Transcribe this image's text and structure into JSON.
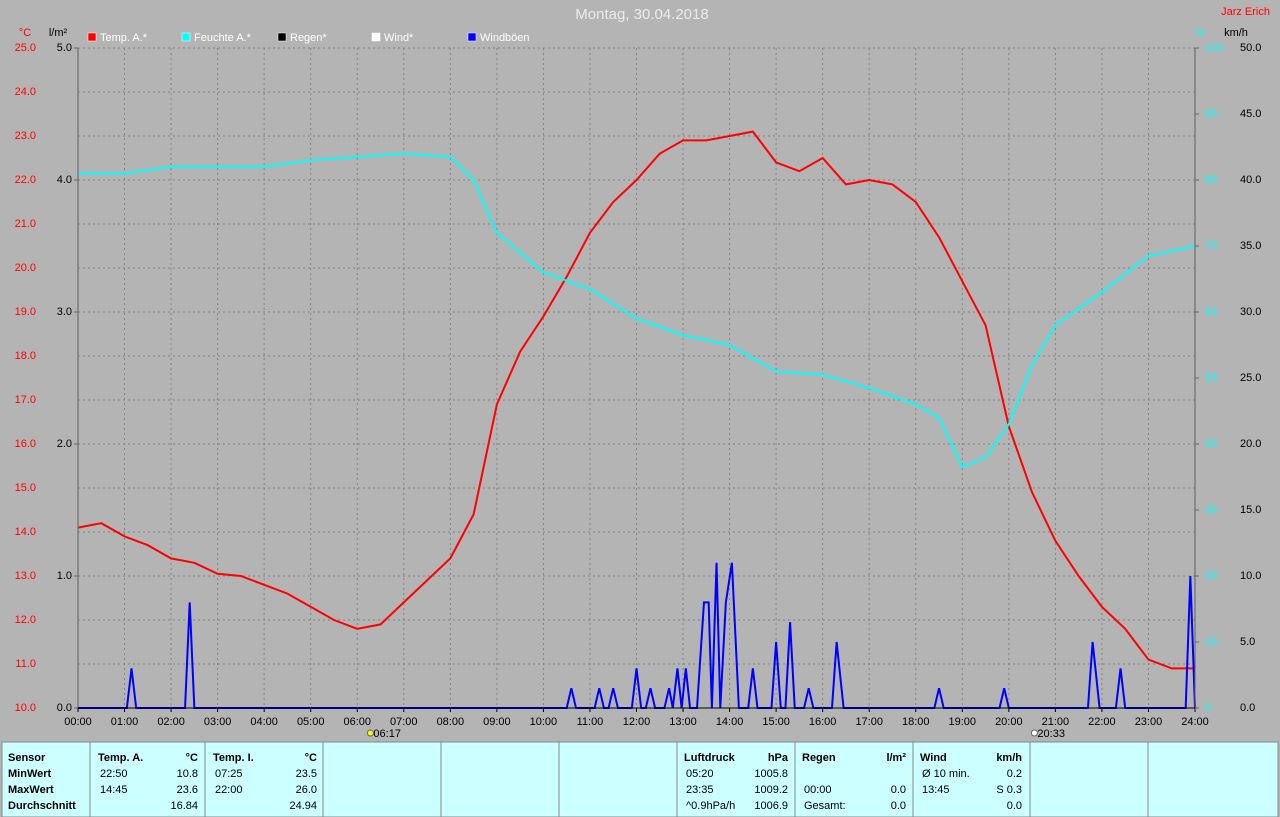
{
  "chart_data": {
    "type": "line",
    "title": "Montag, 30.04.2018",
    "author": "Jarz Erich",
    "xlim": [
      0,
      24
    ],
    "xticks": [
      {
        "value": 0,
        "label": "00:00"
      },
      {
        "value": 1,
        "label": "01:00"
      },
      {
        "value": 2,
        "label": "02:00"
      },
      {
        "value": 3,
        "label": "03:00"
      },
      {
        "value": 4,
        "label": "04:00"
      },
      {
        "value": 5,
        "label": "05:00"
      },
      {
        "value": 6,
        "label": "06:00"
      },
      {
        "value": 7,
        "label": "07:00"
      },
      {
        "value": 8,
        "label": "08:00"
      },
      {
        "value": 9,
        "label": "09:00"
      },
      {
        "value": 10,
        "label": "10:00"
      },
      {
        "value": 11,
        "label": "11:00"
      },
      {
        "value": 12,
        "label": "12:00"
      },
      {
        "value": 13,
        "label": "13:00"
      },
      {
        "value": 14,
        "label": "14:00"
      },
      {
        "value": 15,
        "label": "15:00"
      },
      {
        "value": 16,
        "label": "16:00"
      },
      {
        "value": 17,
        "label": "17:00"
      },
      {
        "value": 18,
        "label": "18:00"
      },
      {
        "value": 19,
        "label": "19:00"
      },
      {
        "value": 20,
        "label": "20:00"
      },
      {
        "value": 21,
        "label": "21:00"
      },
      {
        "value": 22,
        "label": "22:00"
      },
      {
        "value": 23,
        "label": "23:00"
      },
      {
        "value": 24,
        "label": "24:00"
      }
    ],
    "grid": true,
    "axes": {
      "temp": {
        "label": "°C",
        "color": "#ff0000",
        "lim": [
          10,
          25
        ],
        "ticks": [
          {
            "value": 10,
            "label": "10.0"
          },
          {
            "value": 11,
            "label": "11.0"
          },
          {
            "value": 12,
            "label": "12.0"
          },
          {
            "value": 13,
            "label": "13.0"
          },
          {
            "value": 14,
            "label": "14.0"
          },
          {
            "value": 15,
            "label": "15.0"
          },
          {
            "value": 16,
            "label": "16.0"
          },
          {
            "value": 17,
            "label": "17.0"
          },
          {
            "value": 18,
            "label": "18.0"
          },
          {
            "value": 19,
            "label": "19.0"
          },
          {
            "value": 20,
            "label": "20.0"
          },
          {
            "value": 21,
            "label": "21.0"
          },
          {
            "value": 22,
            "label": "22.0"
          },
          {
            "value": 23,
            "label": "23.0"
          },
          {
            "value": 24,
            "label": "24.0"
          },
          {
            "value": 25,
            "label": "25.0"
          }
        ]
      },
      "rain": {
        "label": "l/m²",
        "color": "#000000",
        "lim": [
          0,
          5
        ],
        "ticks": [
          {
            "value": 0,
            "label": "0.0"
          },
          {
            "value": 1,
            "label": "1.0"
          },
          {
            "value": 2,
            "label": "2.0"
          },
          {
            "value": 3,
            "label": "3.0"
          },
          {
            "value": 4,
            "label": "4.0"
          },
          {
            "value": 5,
            "label": "5.0"
          }
        ]
      },
      "humidity": {
        "label": "%",
        "color": "#00ffff",
        "lim": [
          0,
          100
        ],
        "ticks": [
          0,
          10,
          20,
          30,
          40,
          50,
          60,
          70,
          80,
          90,
          100
        ]
      },
      "wind": {
        "label": "km/h",
        "color": "#000000",
        "lim": [
          0,
          50
        ],
        "ticks": [
          {
            "value": 0,
            "label": "0.0"
          },
          {
            "value": 5,
            "label": "5.0"
          },
          {
            "value": 10,
            "label": "10.0"
          },
          {
            "value": 15,
            "label": "15.0"
          },
          {
            "value": 20,
            "label": "20.0"
          },
          {
            "value": 25,
            "label": "25.0"
          },
          {
            "value": 30,
            "label": "30.0"
          },
          {
            "value": 35,
            "label": "35.0"
          },
          {
            "value": 40,
            "label": "40.0"
          },
          {
            "value": 45,
            "label": "45.0"
          },
          {
            "value": 50,
            "label": "50.0"
          }
        ]
      }
    },
    "series": [
      {
        "name": "Temp. A.*",
        "color": "#ff0000",
        "axis": "temp",
        "x": [
          0,
          0.5,
          1,
          1.5,
          2,
          2.5,
          3,
          3.5,
          4,
          4.5,
          5,
          5.5,
          6,
          6.5,
          7,
          7.5,
          8,
          8.5,
          9,
          9.5,
          10,
          10.5,
          11,
          11.5,
          12,
          12.5,
          13,
          13.5,
          14,
          14.5,
          15,
          15.5,
          16,
          16.5,
          17,
          17.5,
          18,
          18.5,
          19,
          19.5,
          20,
          20.5,
          21,
          21.5,
          22,
          22.5,
          23,
          23.5,
          24
        ],
        "values": [
          14.1,
          14.2,
          13.9,
          13.7,
          13.4,
          13.3,
          13.05,
          13.0,
          12.8,
          12.6,
          12.3,
          12.0,
          11.8,
          11.9,
          12.4,
          12.9,
          13.4,
          14.4,
          16.9,
          18.1,
          18.9,
          19.8,
          20.8,
          21.5,
          22.0,
          22.6,
          22.9,
          22.9,
          23.0,
          23.1,
          22.4,
          22.2,
          22.5,
          21.9,
          22.0,
          21.9,
          21.5,
          20.7,
          19.7,
          18.7,
          16.4,
          14.9,
          13.8,
          13.0,
          12.3,
          11.8,
          11.1,
          10.9,
          10.9
        ]
      },
      {
        "name": "Feuchte A.*",
        "color": "#00ffff",
        "axis": "humidity",
        "x": [
          0,
          1,
          2,
          3,
          4,
          5,
          6,
          7,
          8,
          8.5,
          9,
          10,
          11,
          12,
          13,
          14,
          15,
          16,
          17,
          18,
          18.5,
          19,
          19.5,
          20,
          20.5,
          21,
          22,
          23,
          24
        ],
        "values": [
          81,
          81,
          82,
          82,
          82,
          83,
          83.5,
          84,
          83.5,
          80,
          72,
          66,
          63.5,
          59,
          56.5,
          55,
          51,
          50.5,
          48.5,
          46,
          44,
          36.5,
          38,
          43,
          52,
          58,
          63,
          68.5,
          70
        ]
      },
      {
        "name": "Regen*",
        "color": "#000000",
        "axis": "rain"
      },
      {
        "name": "Wind*",
        "color": "#ffffff",
        "axis": "wind"
      },
      {
        "name": "Windböen",
        "color": "#0000ff",
        "axis": "wind",
        "x": [
          0,
          1.05,
          1.15,
          1.25,
          2.3,
          2.4,
          2.5,
          10.5,
          10.6,
          10.7,
          11.1,
          11.2,
          11.3,
          11.4,
          11.5,
          11.6,
          11.9,
          12.0,
          12.1,
          12.2,
          12.3,
          12.4,
          12.6,
          12.7,
          12.78,
          12.88,
          12.97,
          13.06,
          13.15,
          13.3,
          13.45,
          13.55,
          13.62,
          13.72,
          13.8,
          13.92,
          14.05,
          14.2,
          14.4,
          14.5,
          14.6,
          14.9,
          15.0,
          15.1,
          15.2,
          15.3,
          15.4,
          15.6,
          15.7,
          15.8,
          16.2,
          16.3,
          16.45,
          18.4,
          18.5,
          18.6,
          19.8,
          19.9,
          20.0,
          21.7,
          21.8,
          21.95,
          22.3,
          22.4,
          22.5,
          23.8,
          23.9,
          24
        ],
        "values": [
          0,
          0,
          3,
          0,
          0,
          8,
          0,
          0,
          1.5,
          0,
          0,
          1.5,
          0,
          0,
          1.5,
          0,
          0,
          3,
          0,
          0,
          1.5,
          0,
          0,
          1.5,
          0,
          3,
          0,
          3,
          0,
          0,
          8,
          8,
          0,
          11,
          0,
          8,
          11,
          0,
          0,
          3,
          0,
          0,
          5,
          0,
          0,
          6.5,
          0,
          0,
          1.5,
          0,
          0,
          5,
          0,
          0,
          1.5,
          0,
          0,
          1.5,
          0,
          0,
          5,
          0,
          0,
          3,
          0,
          0,
          10,
          0
        ]
      }
    ],
    "annotations": [
      {
        "x": 6.2833,
        "label": "06:17"
      },
      {
        "x": 20.55,
        "label": "20:33"
      }
    ]
  },
  "table": {
    "sensor_header": "Sensor",
    "row_labels": {
      "min": "MinWert",
      "max": "MaxWert",
      "avg": "Durchschnitt"
    },
    "sections": [
      {
        "title": "Temp. A.",
        "unit": "°C",
        "cells": {
          "min": {
            "time": "22:50",
            "value": "10.8"
          },
          "max": {
            "time": "14:45",
            "value": "23.6"
          },
          "avg": {
            "value": "16.84"
          }
        }
      },
      {
        "title": "Temp. I.",
        "unit": "°C",
        "cells": {
          "min": {
            "time": "07:25",
            "value": "23.5"
          },
          "max": {
            "time": "22:00",
            "value": "26.0"
          },
          "avg": {
            "value": "24.94"
          }
        }
      },
      {
        "title": "Luftdruck",
        "unit": "hPa",
        "cells": {
          "min": {
            "time": "05:20",
            "value": "1005.8"
          },
          "max": {
            "time": "23:35",
            "value": "1009.2"
          },
          "avg": {
            "time": "^0.9hPa/h",
            "value": "1006.9"
          }
        }
      },
      {
        "title": "Regen",
        "unit": "l/m²",
        "cells": {
          "max": {
            "time": "00:00",
            "value": "0.0"
          },
          "avg": {
            "time": "Gesamt:",
            "value": "0.0"
          }
        }
      },
      {
        "title": "Wind",
        "unit": "km/h",
        "cells": {
          "min": {
            "time": "Ø 10 min.",
            "value": "0.2"
          },
          "max": {
            "time": "13:45",
            "value": "S 0.3"
          },
          "avg": {
            "value": "0.0"
          }
        }
      }
    ]
  }
}
